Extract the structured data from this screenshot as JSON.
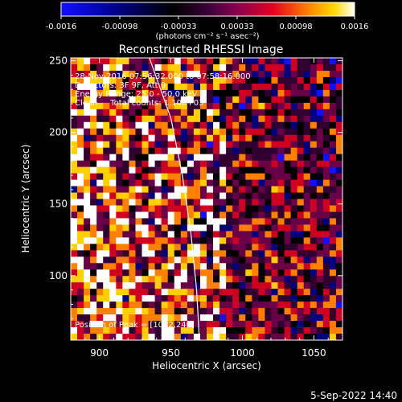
{
  "chart_data": {
    "type": "heatmap",
    "title": "Reconstructed RHESSI Image",
    "xlabel": "Heliocentric X (arcsec)",
    "ylabel": "Heliocentric Y (arcsec)",
    "xlim": [
      880,
      1070
    ],
    "ylim": [
      55,
      252
    ],
    "x_ticks": [
      900,
      950,
      1000,
      1050
    ],
    "y_ticks": [
      100,
      150,
      200,
      250
    ],
    "colorbar": {
      "min": -0.0016,
      "max": 0.0016,
      "ticks": [
        "-0.0016",
        "-0.00098",
        "-0.00033",
        "0.00033",
        "0.00098",
        "0.0016"
      ],
      "unit_label": "(photons cm⁻² s⁻¹ asec⁻²)"
    },
    "annotations": [
      "28-Nov-2016 07:56:32.000 to 07:58:16.000",
      "Detectors: 3F 9F, Att 0",
      "Energy Range: 25.0 - 50.0 keV",
      "Clean     Total counts: 1.10E+03"
    ],
    "peak_text": "Position of Peak = [1062,240]",
    "limb_curve": [
      [
        935,
        252
      ],
      [
        950,
        210
      ],
      [
        958,
        170
      ],
      [
        964,
        130
      ],
      [
        968,
        90
      ],
      [
        970,
        55
      ]
    ],
    "date_stamp": "5-Sep-2022 14:40"
  },
  "colors": {
    "background": "#000000",
    "text": "#ffffff",
    "colormap": [
      "#1010ff",
      "#000080",
      "#000000",
      "#300030",
      "#6a0048",
      "#d00020",
      "#ff8000",
      "#ffd000",
      "#ffffff"
    ]
  }
}
